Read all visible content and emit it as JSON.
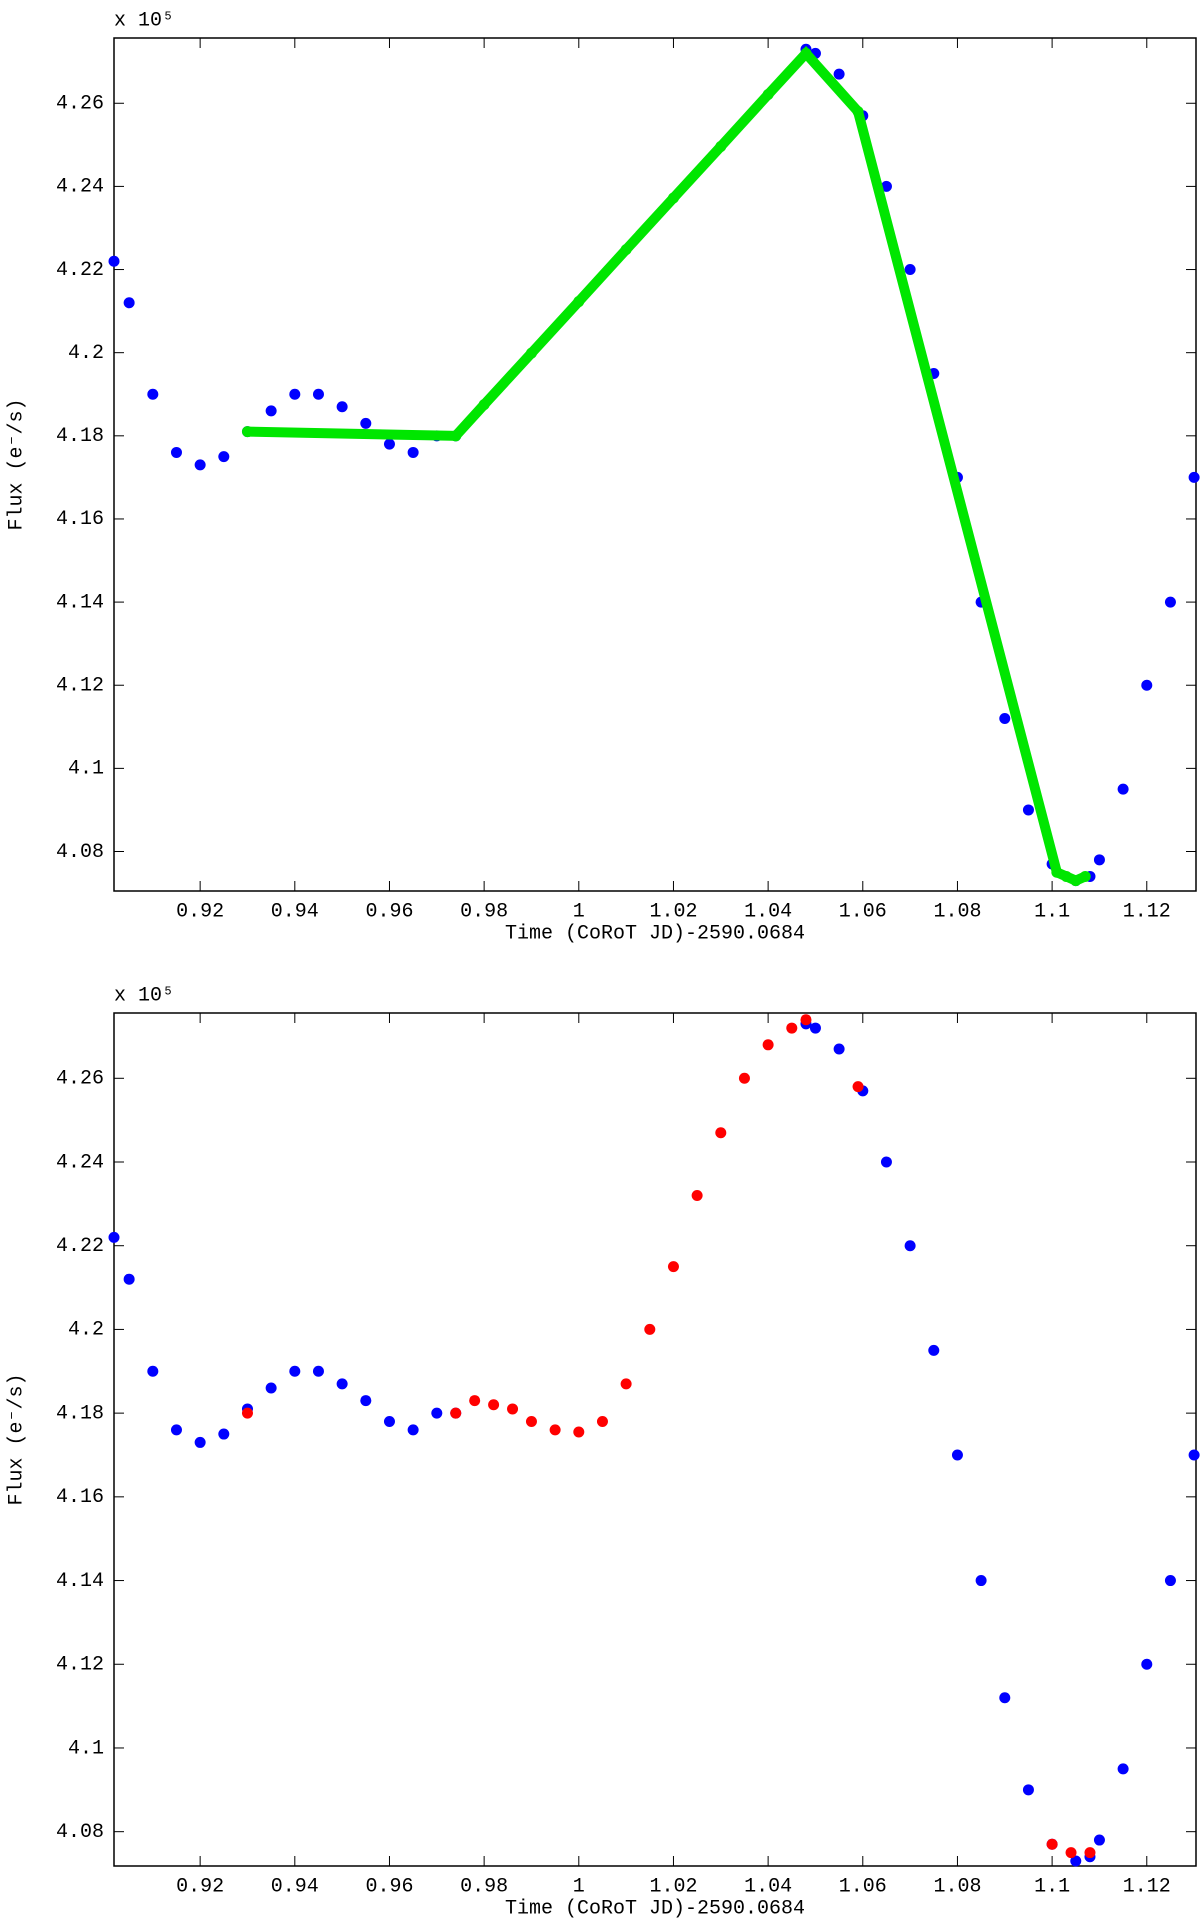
{
  "chart_data": [
    {
      "type": "scatter",
      "xlabel": "Time (CoRoT JD)-2590.0684",
      "ylabel": "Flux (e⁻/s)",
      "y_multiplier": "x 10⁵",
      "xlim": [
        0.9018,
        1.1304
      ],
      "ylim": [
        4.0705,
        4.2757
      ],
      "xticks": [
        0.92,
        0.94,
        0.96,
        0.98,
        1,
        1.02,
        1.04,
        1.06,
        1.08,
        1.1,
        1.12
      ],
      "yticks": [
        4.08,
        4.1,
        4.12,
        4.14,
        4.16,
        4.18,
        4.2,
        4.22,
        4.24,
        4.26
      ],
      "series": [
        {
          "color": "#0000ff",
          "mode": "markers",
          "x": [
            0.9018,
            0.905,
            0.91,
            0.915,
            0.92,
            0.925,
            0.93,
            0.935,
            0.94,
            0.945,
            0.95,
            0.955,
            0.96,
            0.965,
            0.97,
            0.974,
            1.048,
            1.05,
            1.055,
            1.06,
            1.065,
            1.07,
            1.075,
            1.08,
            1.085,
            1.09,
            1.095,
            1.1,
            1.105,
            1.108,
            1.11,
            1.115,
            1.12,
            1.125,
            1.13
          ],
          "values": [
            4.222,
            4.212,
            4.19,
            4.176,
            4.173,
            4.175,
            4.181,
            4.186,
            4.19,
            4.19,
            4.187,
            4.183,
            4.178,
            4.176,
            4.18,
            4.18,
            4.273,
            4.272,
            4.267,
            4.257,
            4.24,
            4.22,
            4.195,
            4.17,
            4.14,
            4.112,
            4.09,
            4.077,
            4.073,
            4.074,
            4.078,
            4.095,
            4.12,
            4.14,
            4.17
          ]
        },
        {
          "color": "#00e600",
          "mode": "lines+markers",
          "x": [
            0.93,
            0.974,
            0.98,
            0.99,
            1,
            1.01,
            1.02,
            1.03,
            1.04,
            1.048,
            1.059,
            1.101,
            1.103,
            1.105,
            1.107
          ],
          "values": [
            4.181,
            4.18,
            4.1875,
            4.1999,
            4.2123,
            4.2248,
            4.2372,
            4.2496,
            4.2621,
            4.272,
            4.258,
            4.075,
            4.074,
            4.073,
            4.074
          ]
        }
      ]
    },
    {
      "type": "scatter",
      "xlabel": "Time (CoRoT JD)-2590.0684",
      "ylabel": "Flux (e⁻/s)",
      "y_multiplier": "x 10⁵",
      "xlim": [
        0.9018,
        1.1304
      ],
      "ylim": [
        4.0718,
        4.2756
      ],
      "xticks": [
        0.92,
        0.94,
        0.96,
        0.98,
        1,
        1.02,
        1.04,
        1.06,
        1.08,
        1.1,
        1.12
      ],
      "yticks": [
        4.08,
        4.1,
        4.12,
        4.14,
        4.16,
        4.18,
        4.2,
        4.22,
        4.24,
        4.26
      ],
      "series": [
        {
          "color": "#0000ff",
          "mode": "markers",
          "x": [
            0.9018,
            0.905,
            0.91,
            0.915,
            0.92,
            0.925,
            0.93,
            0.935,
            0.94,
            0.945,
            0.95,
            0.955,
            0.96,
            0.965,
            0.97,
            0.974,
            1.048,
            1.05,
            1.055,
            1.06,
            1.065,
            1.07,
            1.075,
            1.08,
            1.085,
            1.09,
            1.095,
            1.1,
            1.105,
            1.108,
            1.11,
            1.115,
            1.12,
            1.125,
            1.13
          ],
          "values": [
            4.222,
            4.212,
            4.19,
            4.176,
            4.173,
            4.175,
            4.181,
            4.186,
            4.19,
            4.19,
            4.187,
            4.183,
            4.178,
            4.176,
            4.18,
            4.18,
            4.273,
            4.272,
            4.267,
            4.257,
            4.24,
            4.22,
            4.195,
            4.17,
            4.14,
            4.112,
            4.09,
            4.077,
            4.073,
            4.074,
            4.078,
            4.095,
            4.12,
            4.14,
            4.17
          ]
        },
        {
          "color": "#ff0000",
          "mode": "markers",
          "x": [
            0.93,
            0.974,
            0.978,
            0.982,
            0.986,
            0.99,
            0.995,
            1,
            1.005,
            1.01,
            1.015,
            1.02,
            1.025,
            1.03,
            1.035,
            1.04,
            1.045,
            1.048,
            1.059,
            1.1,
            1.104,
            1.108
          ],
          "values": [
            4.18,
            4.18,
            4.183,
            4.182,
            4.181,
            4.178,
            4.176,
            4.1755,
            4.178,
            4.187,
            4.2,
            4.215,
            4.232,
            4.247,
            4.26,
            4.268,
            4.272,
            4.274,
            4.258,
            4.077,
            4.075,
            4.075
          ]
        }
      ]
    }
  ]
}
